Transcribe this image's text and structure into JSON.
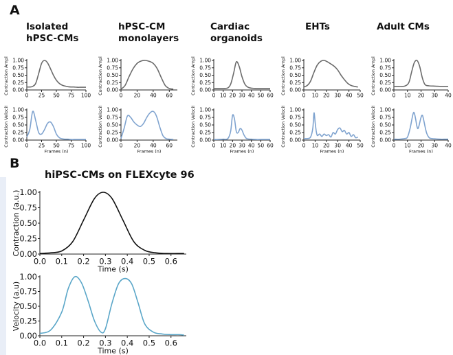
{
  "panels": {
    "a": "A",
    "b": "B"
  },
  "panel_a": {
    "models": [
      {
        "title": "Isolated\nhPSC-CMs"
      },
      {
        "title": "hPSC-CM\nmonolayers"
      },
      {
        "title": "Cardiac\norganoids"
      },
      {
        "title": "EHTs"
      },
      {
        "title": "Adult CMs"
      }
    ]
  },
  "panel_b": {
    "title": "hiPSC-CMs on FLEXcyte 96"
  },
  "colors": {
    "contraction": "#6b6b6b",
    "velocity": "#7fa3cf",
    "b_contraction": "#111111",
    "b_velocity": "#5aa6c8",
    "axis": "#222222"
  },
  "chart_data": [
    {
      "type": "line",
      "model": "Isolated hPSC-CMs",
      "signal": "contraction",
      "xlabel": "",
      "ylabel": "Contraction Ampl.",
      "xlim": [
        0,
        100
      ],
      "ylim": [
        0,
        1
      ],
      "xticks": [
        0,
        25,
        50,
        75,
        100
      ],
      "yticks": [
        "0.00",
        "0.25",
        "0.50",
        "0.75",
        "1.00"
      ],
      "x": [
        0,
        5,
        10,
        15,
        20,
        25,
        30,
        35,
        40,
        45,
        50,
        55,
        60,
        65,
        70,
        75,
        80,
        85,
        90,
        95,
        100
      ],
      "y": [
        0.1,
        0.1,
        0.12,
        0.22,
        0.55,
        0.9,
        1.0,
        0.92,
        0.72,
        0.5,
        0.33,
        0.22,
        0.16,
        0.13,
        0.11,
        0.1,
        0.1,
        0.09,
        0.09,
        0.09,
        0.09
      ]
    },
    {
      "type": "line",
      "model": "hPSC-CM monolayers",
      "signal": "contraction",
      "xlabel": "",
      "ylabel": "Contraction Ampl.",
      "xlim": [
        0,
        70
      ],
      "ylim": [
        0,
        1
      ],
      "xticks": [
        0,
        20,
        40,
        60
      ],
      "yticks": [
        "0.00",
        "0.25",
        "0.50",
        "0.75",
        "1.00"
      ],
      "x": [
        0,
        5,
        10,
        15,
        20,
        25,
        30,
        35,
        40,
        45,
        50,
        55,
        60,
        65
      ],
      "y": [
        0.03,
        0.15,
        0.45,
        0.72,
        0.9,
        0.98,
        1.0,
        0.97,
        0.9,
        0.72,
        0.42,
        0.15,
        0.05,
        0.03
      ]
    },
    {
      "type": "line",
      "model": "Cardiac organoids",
      "signal": "contraction",
      "xlabel": "",
      "ylabel": "Contraction Ampl.",
      "xlim": [
        0,
        60
      ],
      "ylim": [
        0,
        1
      ],
      "xticks": [
        0,
        10,
        20,
        30,
        40,
        50,
        60
      ],
      "yticks": [
        "0.00",
        "0.25",
        "0.50",
        "0.75",
        "1.00"
      ],
      "x": [
        0,
        5,
        10,
        15,
        18,
        21,
        24,
        27,
        30,
        33,
        36,
        40,
        45,
        50,
        55,
        60
      ],
      "y": [
        0.05,
        0.05,
        0.05,
        0.07,
        0.2,
        0.55,
        0.95,
        0.8,
        0.45,
        0.2,
        0.1,
        0.06,
        0.05,
        0.05,
        0.05,
        0.05
      ]
    },
    {
      "type": "line",
      "model": "EHTs",
      "signal": "contraction",
      "xlabel": "",
      "ylabel": "Contraction Ampl.",
      "xlim": [
        0,
        50
      ],
      "ylim": [
        0,
        1
      ],
      "xticks": [
        0,
        10,
        20,
        30,
        40,
        50
      ],
      "yticks": [
        "0.00",
        "0.25",
        "0.50",
        "0.75",
        "1.00"
      ],
      "x": [
        0,
        3,
        6,
        9,
        12,
        15,
        18,
        21,
        24,
        27,
        30,
        33,
        36,
        39,
        42,
        45,
        48
      ],
      "y": [
        0.1,
        0.15,
        0.3,
        0.6,
        0.85,
        0.97,
        1.0,
        0.95,
        0.88,
        0.8,
        0.68,
        0.5,
        0.35,
        0.22,
        0.15,
        0.12,
        0.1
      ]
    },
    {
      "type": "line",
      "model": "Adult CMs",
      "signal": "contraction",
      "xlabel": "",
      "ylabel": "Contraction Ampl.",
      "xlim": [
        0,
        40
      ],
      "ylim": [
        0,
        1
      ],
      "xticks": [
        0,
        10,
        20,
        30,
        40
      ],
      "yticks": [
        "0.00",
        "0.25",
        "0.50",
        "0.75",
        "1.00"
      ],
      "x": [
        0,
        4,
        8,
        11,
        13,
        15,
        17,
        19,
        21,
        23,
        26,
        30,
        34,
        38,
        40
      ],
      "y": [
        0.12,
        0.12,
        0.13,
        0.25,
        0.6,
        0.92,
        1.0,
        0.8,
        0.4,
        0.18,
        0.14,
        0.13,
        0.12,
        0.12,
        0.12
      ]
    },
    {
      "type": "line",
      "model": "Isolated hPSC-CMs",
      "signal": "velocity",
      "xlabel": "Frames (n)",
      "ylabel": "Contraction Velocity",
      "xlim": [
        0,
        100
      ],
      "ylim": [
        0,
        1
      ],
      "xticks": [
        0,
        25,
        50,
        75,
        100
      ],
      "yticks": [
        "0.00",
        "0.25",
        "0.50",
        "0.75",
        "1.00"
      ],
      "x": [
        0,
        5,
        10,
        15,
        20,
        25,
        30,
        35,
        40,
        45,
        50,
        55,
        60,
        65,
        70,
        75,
        80,
        85,
        90,
        95,
        100
      ],
      "y": [
        0.1,
        0.35,
        0.95,
        0.65,
        0.25,
        0.2,
        0.35,
        0.55,
        0.6,
        0.45,
        0.2,
        0.08,
        0.04,
        0.03,
        0.03,
        0.02,
        0.02,
        0.02,
        0.02,
        0.02,
        0.02
      ]
    },
    {
      "type": "line",
      "model": "hPSC-CM monolayers",
      "signal": "velocity",
      "xlabel": "Frames (n)",
      "ylabel": "Contraction Velocity",
      "xlim": [
        0,
        70
      ],
      "ylim": [
        0,
        1
      ],
      "xticks": [
        0,
        20,
        40,
        60
      ],
      "yticks": [
        "0.00",
        "0.25",
        "0.50",
        "0.75",
        "1.00"
      ],
      "x": [
        0,
        4,
        8,
        12,
        16,
        20,
        24,
        28,
        32,
        36,
        40,
        44,
        48,
        52,
        56,
        60,
        65
      ],
      "y": [
        0.05,
        0.4,
        0.8,
        0.75,
        0.6,
        0.5,
        0.45,
        0.55,
        0.75,
        0.9,
        0.95,
        0.8,
        0.45,
        0.15,
        0.05,
        0.03,
        0.02
      ]
    },
    {
      "type": "line",
      "model": "Cardiac organoids",
      "signal": "velocity",
      "xlabel": "Frames (n)",
      "ylabel": "Contraction Velocity",
      "xlim": [
        0,
        60
      ],
      "ylim": [
        0,
        1
      ],
      "xticks": [
        0,
        10,
        20,
        30,
        40,
        50,
        60
      ],
      "yticks": [
        "0.00",
        "0.25",
        "0.50",
        "0.75",
        "1.00"
      ],
      "x": [
        0,
        5,
        10,
        15,
        18,
        20,
        22,
        24,
        26,
        28,
        30,
        32,
        35,
        40,
        45,
        50,
        55,
        60
      ],
      "y": [
        0.02,
        0.02,
        0.03,
        0.05,
        0.3,
        0.82,
        0.7,
        0.28,
        0.25,
        0.38,
        0.33,
        0.18,
        0.05,
        0.03,
        0.02,
        0.02,
        0.02,
        0.02
      ]
    },
    {
      "type": "line",
      "model": "EHTs",
      "signal": "velocity",
      "xlabel": "Frames (n)",
      "ylabel": "Contraction Velocity",
      "xlim": [
        0,
        50
      ],
      "ylim": [
        0,
        1
      ],
      "xticks": [
        0,
        10,
        20,
        30,
        40,
        50
      ],
      "yticks": [
        "0.00",
        "0.25",
        "0.50",
        "0.75",
        "1.00"
      ],
      "x": [
        0,
        3,
        6,
        8,
        9,
        10,
        11,
        12,
        14,
        16,
        18,
        20,
        22,
        24,
        26,
        28,
        30,
        32,
        34,
        36,
        38,
        40,
        42,
        44,
        46,
        48
      ],
      "y": [
        0.05,
        0.05,
        0.1,
        0.4,
        0.9,
        0.6,
        0.3,
        0.15,
        0.2,
        0.12,
        0.2,
        0.15,
        0.18,
        0.1,
        0.25,
        0.2,
        0.35,
        0.4,
        0.28,
        0.32,
        0.2,
        0.25,
        0.12,
        0.18,
        0.08,
        0.1
      ]
    },
    {
      "type": "line",
      "model": "Adult CMs",
      "signal": "velocity",
      "xlabel": "Frames (n)",
      "ylabel": "Contraction Velocity",
      "xlim": [
        0,
        40
      ],
      "ylim": [
        0,
        1
      ],
      "xticks": [
        0,
        10,
        20,
        30,
        40
      ],
      "yticks": [
        "0.00",
        "0.25",
        "0.50",
        "0.75",
        "1.00"
      ],
      "x": [
        0,
        4,
        8,
        10,
        12,
        14,
        15,
        16,
        17,
        18,
        20,
        21,
        22,
        24,
        26,
        28,
        30,
        34,
        38,
        40
      ],
      "y": [
        0.03,
        0.03,
        0.05,
        0.1,
        0.4,
        0.85,
        0.9,
        0.7,
        0.45,
        0.4,
        0.75,
        0.82,
        0.65,
        0.25,
        0.08,
        0.05,
        0.04,
        0.03,
        0.03,
        0.03
      ]
    },
    {
      "type": "line",
      "model": "hiPSC-CMs on FLEXcyte 96",
      "signal": "contraction",
      "xlabel": "Time (s)",
      "ylabel": "Contraction (a.u.)",
      "xlim": [
        0,
        0.67
      ],
      "ylim": [
        0,
        1
      ],
      "xticks": [
        "0.0",
        "0.1",
        "0.2",
        "0.3",
        "0.4",
        "0.5",
        "0.6"
      ],
      "yticks": [
        "0.00",
        "0.25",
        "0.50",
        "0.75",
        "1.00"
      ],
      "x": [
        0,
        0.05,
        0.1,
        0.15,
        0.2,
        0.25,
        0.29,
        0.33,
        0.38,
        0.43,
        0.48,
        0.53,
        0.58,
        0.63,
        0.66
      ],
      "y": [
        0.01,
        0.02,
        0.05,
        0.2,
        0.55,
        0.9,
        1.0,
        0.9,
        0.55,
        0.2,
        0.06,
        0.02,
        0.01,
        0.01,
        0.01
      ]
    },
    {
      "type": "line",
      "model": "hiPSC-CMs on FLEXcyte 96",
      "signal": "velocity",
      "xlabel": "Time (s)",
      "ylabel": "Velocity (a.u)",
      "xlim": [
        0,
        0.67
      ],
      "ylim": [
        0,
        1
      ],
      "xticks": [
        "0.0",
        "0.1",
        "0.2",
        "0.3",
        "0.4",
        "0.5",
        "0.6"
      ],
      "yticks": [
        "0.00",
        "0.25",
        "0.50",
        "0.75",
        "1.00"
      ],
      "x": [
        0,
        0.05,
        0.1,
        0.13,
        0.16,
        0.19,
        0.22,
        0.25,
        0.28,
        0.3,
        0.33,
        0.36,
        0.39,
        0.42,
        0.45,
        0.48,
        0.52,
        0.56,
        0.6,
        0.64,
        0.66
      ],
      "y": [
        0.04,
        0.1,
        0.4,
        0.8,
        1.0,
        0.9,
        0.6,
        0.25,
        0.06,
        0.12,
        0.55,
        0.88,
        0.97,
        0.88,
        0.55,
        0.2,
        0.06,
        0.03,
        0.02,
        0.02,
        0.01
      ]
    }
  ]
}
